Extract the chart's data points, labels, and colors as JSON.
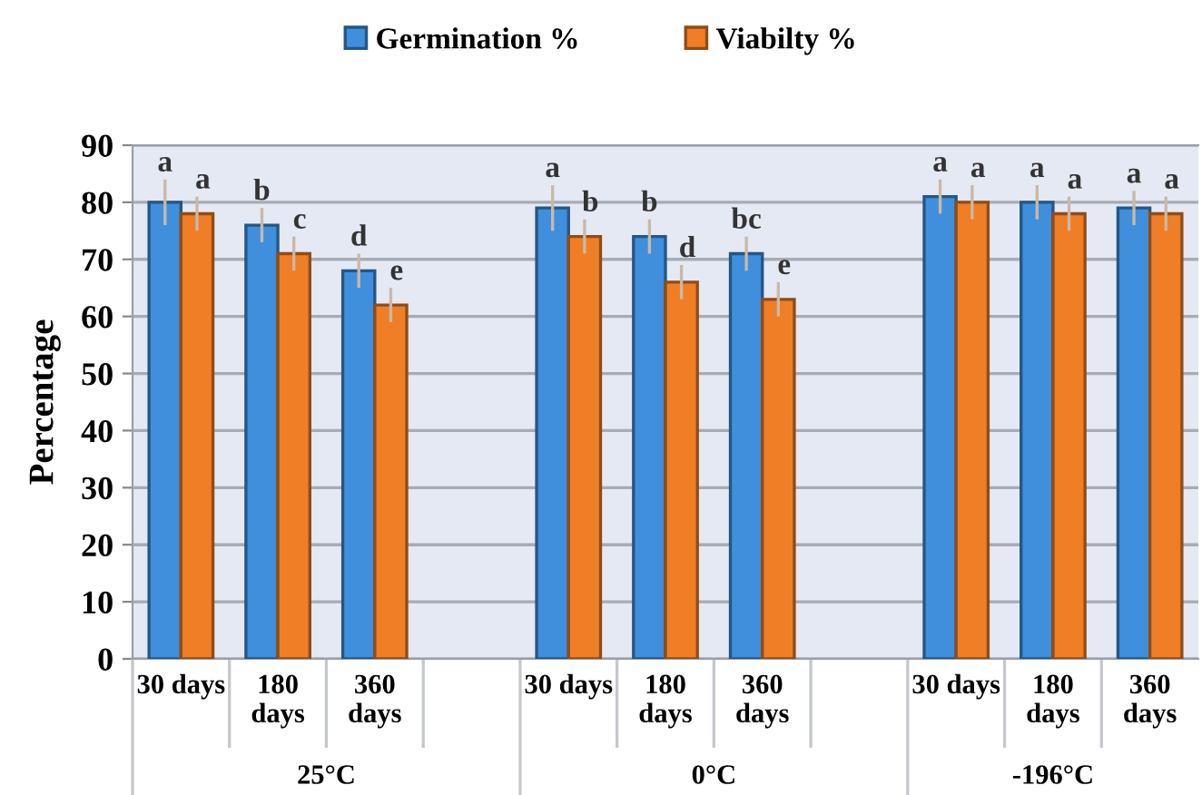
{
  "chart_data": {
    "type": "bar",
    "categories": [
      "30 days",
      "180 days",
      "360 days",
      null,
      "30 days",
      "180 days",
      "360 days",
      null,
      "30 days",
      "180 days",
      "360 days"
    ],
    "series": [
      {
        "name": "Germination %",
        "color": "#3f8fdc",
        "values": [
          80,
          76,
          68,
          null,
          79,
          74,
          71,
          null,
          81,
          80,
          79
        ],
        "errors": [
          4,
          3,
          3,
          null,
          4,
          3,
          3,
          null,
          3,
          3,
          3
        ],
        "value_labels": [
          "a",
          "b",
          "d",
          null,
          "a",
          "b",
          "bc",
          null,
          "a",
          "a",
          "a"
        ]
      },
      {
        "name": "Viabilty %",
        "color": "#f07e26",
        "values": [
          78,
          71,
          62,
          null,
          74,
          66,
          63,
          null,
          80,
          78,
          78
        ],
        "errors": [
          3,
          3,
          3,
          null,
          3,
          3,
          3,
          null,
          3,
          3,
          3
        ],
        "value_labels": [
          "a",
          "c",
          "e",
          null,
          "b",
          "d",
          "e",
          null,
          "a",
          "a",
          "a"
        ]
      }
    ],
    "ylabel": "Percentage",
    "ylim": [
      0,
      90
    ],
    "yticks": [
      0,
      10,
      20,
      30,
      40,
      50,
      60,
      70,
      80,
      90
    ],
    "grid": "y",
    "legend": "top",
    "annotations": [
      "25°C",
      "0°C",
      "-196°C"
    ]
  }
}
